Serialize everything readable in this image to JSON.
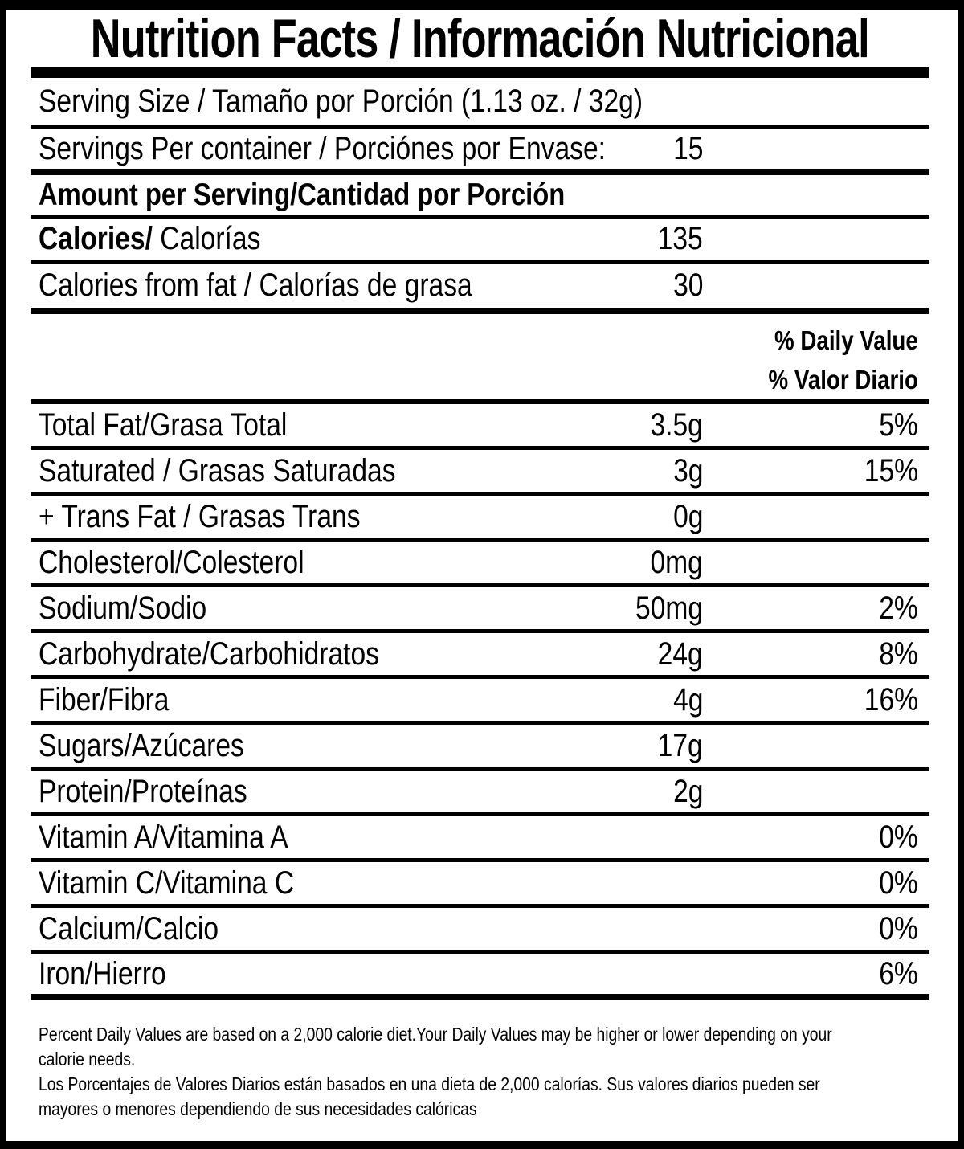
{
  "colors": {
    "text": "#000000",
    "background": "#ffffff",
    "rule": "#000000"
  },
  "title": "Nutrition Facts / Información Nutricional",
  "rows": [
    {
      "name": "serving-size-row",
      "label": "Serving Size / Tamaño por Porción (1.13 oz. / 32g)",
      "amount": "",
      "percent": ""
    },
    {
      "name": "servings-per-container-row",
      "label": "Servings Per container / Porciónes por Envase:",
      "amount": "15",
      "percent": ""
    },
    {
      "name": "amount-per-serving-header",
      "label": "Amount per Serving/Cantidad por Porción",
      "amount": "",
      "percent": ""
    },
    {
      "name": "calories-row",
      "label_bold": "Calories/",
      "label": " Calorías",
      "amount": "135",
      "percent": ""
    },
    {
      "name": "calories-from-fat-row",
      "label": "Calories from fat / Calorías de grasa",
      "amount": "30",
      "percent": ""
    },
    {
      "name": "daily-value-header",
      "lines": [
        "% Daily Value",
        "% Valor Diario"
      ]
    },
    {
      "name": "row-total-fat",
      "label": "Total Fat/Grasa Total",
      "amount": "3.5g",
      "percent": "5%"
    },
    {
      "name": "row-saturated-fat",
      "label": "Saturated / Grasas Saturadas",
      "amount": "3g",
      "percent": "15%"
    },
    {
      "name": "row-trans-fat",
      "label": "+ Trans Fat / Grasas Trans",
      "amount": "0g",
      "percent": ""
    },
    {
      "name": "row-cholesterol",
      "label": "Cholesterol/Colesterol",
      "amount": "0mg",
      "percent": ""
    },
    {
      "name": "row-sodium",
      "label": "Sodium/Sodio",
      "amount": "50mg",
      "percent": "2%"
    },
    {
      "name": "row-carbohydrate",
      "label": "Carbohydrate/Carbohidratos",
      "amount": "24g",
      "percent": "8%"
    },
    {
      "name": "row-fiber",
      "label": "Fiber/Fibra",
      "amount": "4g",
      "percent": "16%"
    },
    {
      "name": "row-sugars",
      "label": "Sugars/Azúcares",
      "amount": "17g",
      "percent": ""
    },
    {
      "name": "row-protein",
      "label": "Protein/Proteínas",
      "amount": "2g",
      "percent": ""
    },
    {
      "name": "row-vitamin-a",
      "label": "Vitamin A/Vitamina A",
      "amount": "",
      "percent": "0%"
    },
    {
      "name": "row-vitamin-c",
      "label": "Vitamin C/Vitamina C",
      "amount": "",
      "percent": "0%"
    },
    {
      "name": "row-calcium",
      "label": "Calcium/Calcio",
      "amount": "",
      "percent": "0%"
    },
    {
      "name": "row-iron",
      "label": "Iron/Hierro",
      "amount": "",
      "percent": "6%"
    }
  ],
  "footnotes": [
    "Percent Daily Values are based on a 2,000 calorie diet.Your Daily Values may be higher or lower depending on your",
    "calorie needs.",
    "Los Porcentajes de Valores Diarios están basados en una dieta de 2,000 calorías. Sus valores diarios pueden ser",
    "mayores o menores dependiendo de sus necesidades calóricas"
  ]
}
